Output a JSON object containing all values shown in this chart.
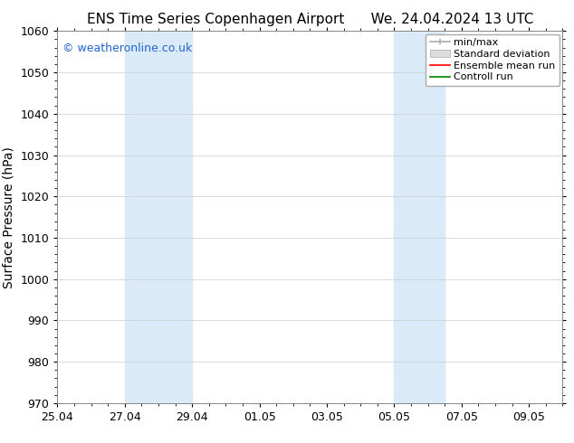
{
  "title_left": "ENS Time Series Copenhagen Airport",
  "title_right": "We. 24.04.2024 13 UTC",
  "ylabel": "Surface Pressure (hPa)",
  "ylim": [
    970,
    1060
  ],
  "yticks": [
    970,
    980,
    990,
    1000,
    1010,
    1020,
    1030,
    1040,
    1050,
    1060
  ],
  "xlim": [
    0,
    15
  ],
  "xtick_labels": [
    "25.04",
    "27.04",
    "29.04",
    "01.05",
    "03.05",
    "05.05",
    "07.05",
    "09.05"
  ],
  "xtick_positions": [
    0,
    2,
    4,
    6,
    8,
    10,
    12,
    14
  ],
  "shaded_bands": [
    {
      "x_start": 2,
      "x_end": 4
    },
    {
      "x_start": 10,
      "x_end": 11.5
    }
  ],
  "shaded_color": "#dbeaf8",
  "watermark_text": "© weatheronline.co.uk",
  "watermark_color": "#2266cc",
  "legend_items": [
    {
      "label": "min/max",
      "color": "#aaaaaa",
      "style": "errorbar"
    },
    {
      "label": "Standard deviation",
      "color": "#cccccc",
      "style": "bar"
    },
    {
      "label": "Ensemble mean run",
      "color": "red",
      "style": "line"
    },
    {
      "label": "Controll run",
      "color": "green",
      "style": "line"
    }
  ],
  "bg_color": "#ffffff",
  "grid_color": "#cccccc",
  "font_size_title": 11,
  "font_size_ticks": 9,
  "font_size_ylabel": 10,
  "font_size_legend": 8,
  "font_size_watermark": 9
}
